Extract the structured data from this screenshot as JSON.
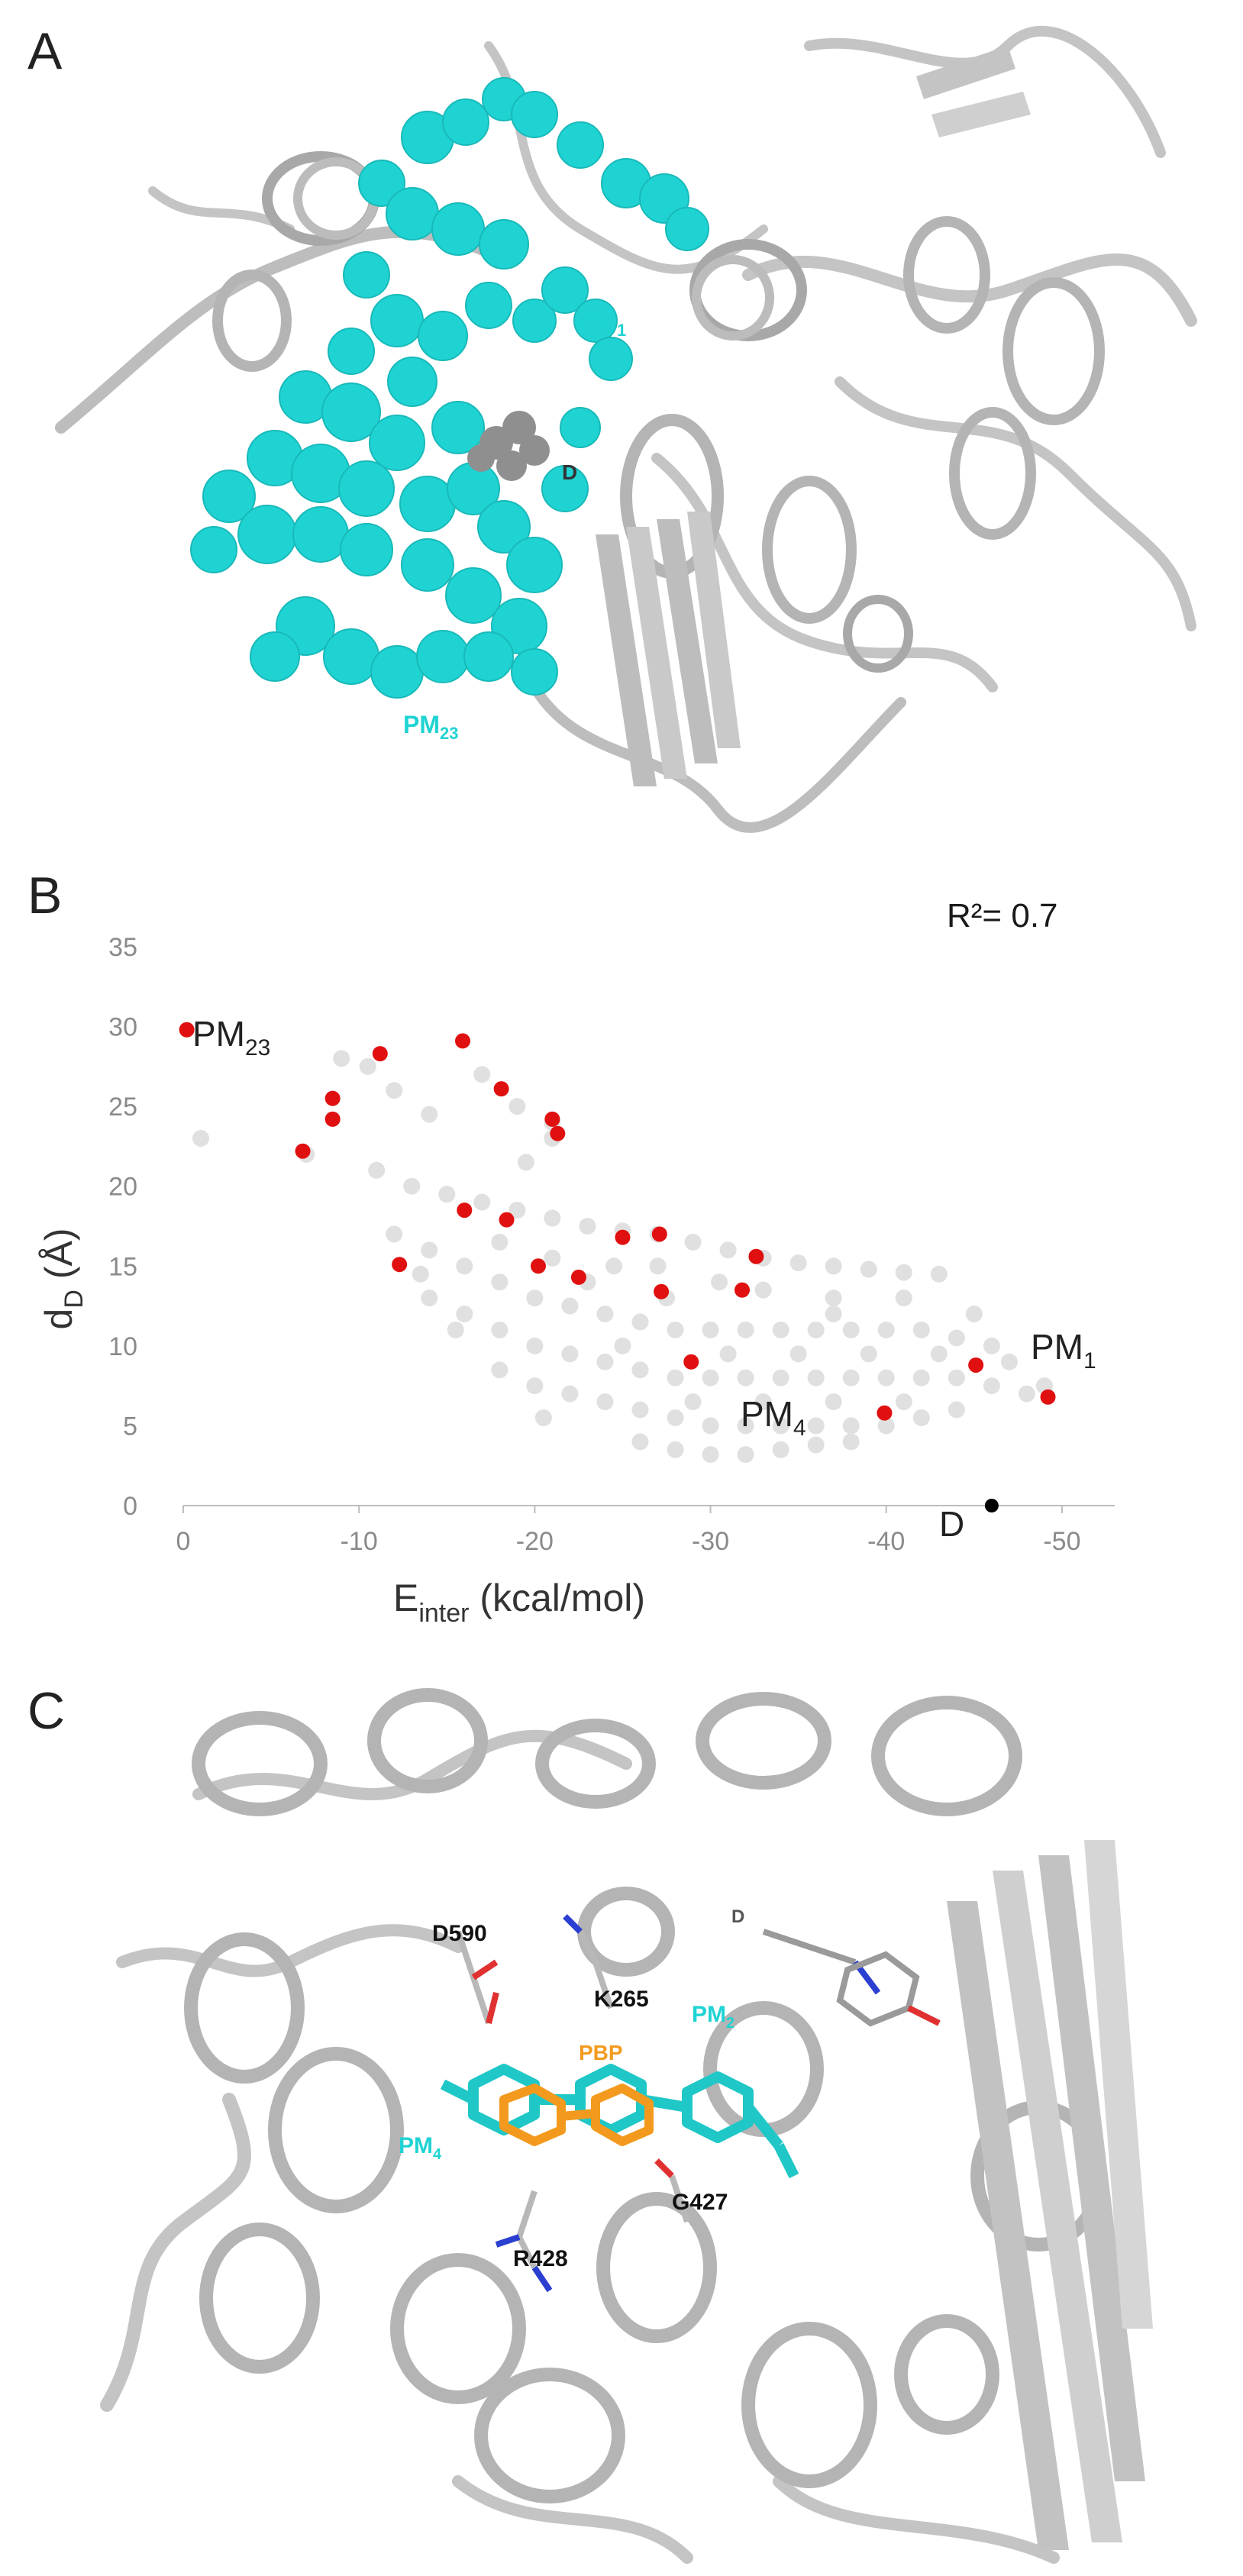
{
  "panels": {
    "a": {
      "letter": "A",
      "labels": {
        "pm1": "PM",
        "pm1_sub": "1",
        "pm23": "PM",
        "pm23_sub": "23",
        "d": "D"
      },
      "colors": {
        "pocket": "#1fd3d3",
        "protein": "#c8c8c8",
        "ligand": "#8f8f8f"
      }
    },
    "b": {
      "letter": "B",
      "r2_text": "R²= 0.7",
      "ylabel_main": "d",
      "ylabel_sub": "D",
      "ylabel_rest": " (Å)",
      "xlabel_main": "E",
      "xlabel_sub": "inter",
      "xlabel_rest": " (kcal/mol)",
      "annotations": {
        "pm23": "PM",
        "pm23_sub": "23",
        "pm4": "PM",
        "pm4_sub": "4",
        "pm1": "PM",
        "pm1_sub": "1",
        "d": "D"
      }
    },
    "c": {
      "letter": "C",
      "labels": {
        "d590": "D590",
        "k265": "K265",
        "g427": "G427",
        "r428": "R428",
        "pbp": "PBP",
        "pm2": "PM",
        "pm2_sub": "2",
        "pm4": "PM",
        "pm4_sub": "4",
        "d": "D"
      },
      "colors": {
        "cyan": "#1fd3d3",
        "orange": "#f39a1e",
        "protein": "#c8c8c8"
      }
    }
  },
  "chart_data": {
    "type": "scatter",
    "xlabel": "E_inter (kcal/mol)",
    "ylabel": "d_D (Å)",
    "xlim": [
      0,
      -53
    ],
    "ylim": [
      0,
      35
    ],
    "x_ticks": [
      0,
      -10,
      -20,
      -30,
      -40,
      -50
    ],
    "x_tick_labels": [
      "0",
      "-10",
      "-20",
      "-30",
      "-40",
      "-50"
    ],
    "y_ticks": [
      0,
      5,
      10,
      15,
      20,
      25,
      30,
      35
    ],
    "y_tick_labels": [
      "0",
      "5",
      "10",
      "15",
      "20",
      "25",
      "30",
      "35"
    ],
    "grid": false,
    "annotation": "R²= 0.7",
    "background_color": "#e0e0e0",
    "highlight_color": "#e01010",
    "reference_color": "#000000",
    "background_cloud": [
      [
        -1,
        23
      ],
      [
        -7,
        22
      ],
      [
        -9,
        28
      ],
      [
        -10.5,
        27.5
      ],
      [
        -12,
        26
      ],
      [
        -14,
        24.5
      ],
      [
        -17,
        27
      ],
      [
        -19,
        25
      ],
      [
        -21,
        24
      ],
      [
        -19.5,
        21.5
      ],
      [
        -21,
        23
      ],
      [
        -11,
        21
      ],
      [
        -13,
        20
      ],
      [
        -15,
        19.5
      ],
      [
        -17,
        19
      ],
      [
        -19,
        18.5
      ],
      [
        -21,
        18
      ],
      [
        -23,
        17.5
      ],
      [
        -25,
        17.2
      ],
      [
        -27,
        17
      ],
      [
        -29,
        16.5
      ],
      [
        -31,
        16
      ],
      [
        -33,
        15.5
      ],
      [
        -35,
        15.2
      ],
      [
        -37,
        15
      ],
      [
        -39,
        14.8
      ],
      [
        -41,
        14.6
      ],
      [
        -43,
        14.5
      ],
      [
        -12,
        17
      ],
      [
        -14,
        16
      ],
      [
        -16,
        15
      ],
      [
        -18,
        14
      ],
      [
        -20,
        13
      ],
      [
        -22,
        12.5
      ],
      [
        -24,
        12
      ],
      [
        -26,
        11.5
      ],
      [
        -28,
        11
      ],
      [
        -30,
        11
      ],
      [
        -32,
        11
      ],
      [
        -34,
        11
      ],
      [
        -36,
        11
      ],
      [
        -38,
        11
      ],
      [
        -40,
        11
      ],
      [
        -42,
        11
      ],
      [
        -44,
        10.5
      ],
      [
        -46,
        10
      ],
      [
        -14,
        13
      ],
      [
        -16,
        12
      ],
      [
        -18,
        11
      ],
      [
        -20,
        10
      ],
      [
        -22,
        9.5
      ],
      [
        -24,
        9
      ],
      [
        -26,
        8.5
      ],
      [
        -28,
        8
      ],
      [
        -30,
        8
      ],
      [
        -32,
        8
      ],
      [
        -34,
        8
      ],
      [
        -36,
        8
      ],
      [
        -38,
        8
      ],
      [
        -40,
        8
      ],
      [
        -42,
        8
      ],
      [
        -44,
        8
      ],
      [
        -46,
        7.5
      ],
      [
        -48,
        7
      ],
      [
        -18,
        8.5
      ],
      [
        -20,
        7.5
      ],
      [
        -22,
        7
      ],
      [
        -24,
        6.5
      ],
      [
        -26,
        6
      ],
      [
        -28,
        5.5
      ],
      [
        -30,
        5
      ],
      [
        -32,
        5
      ],
      [
        -34,
        5
      ],
      [
        -36,
        5
      ],
      [
        -38,
        5
      ],
      [
        -40,
        5
      ],
      [
        -42,
        5.5
      ],
      [
        -44,
        6
      ],
      [
        -26,
        4
      ],
      [
        -28,
        3.5
      ],
      [
        -30,
        3.2
      ],
      [
        -32,
        3.2
      ],
      [
        -34,
        3.5
      ],
      [
        -36,
        3.8
      ],
      [
        -38,
        4
      ],
      [
        -20.5,
        5.5
      ],
      [
        -15.5,
        11
      ],
      [
        -13.5,
        14.5
      ],
      [
        -33,
        13.5
      ],
      [
        -37,
        13
      ],
      [
        -41,
        13
      ],
      [
        -45,
        12
      ],
      [
        -47,
        9
      ],
      [
        -49,
        7.5
      ],
      [
        -30.5,
        14
      ],
      [
        -27.5,
        13
      ],
      [
        -24.5,
        15
      ],
      [
        -35,
        9.5
      ],
      [
        -39,
        9.5
      ],
      [
        -43,
        9.5
      ],
      [
        -23,
        14
      ],
      [
        -18,
        16.5
      ],
      [
        -29,
        6.5
      ],
      [
        -33,
        6.5
      ],
      [
        -37,
        6.5
      ],
      [
        -41,
        6.5
      ],
      [
        -25,
        10
      ],
      [
        -31,
        9.5
      ],
      [
        -37,
        12
      ],
      [
        -21,
        15.5
      ],
      [
        -27,
        15
      ]
    ],
    "highlighted": [
      [
        -0.2,
        29.8
      ],
      [
        -6.8,
        22.2
      ],
      [
        -8.5,
        25.5
      ],
      [
        -8.5,
        24.2
      ],
      [
        -11.2,
        28.3
      ],
      [
        -12.3,
        15.1
      ],
      [
        -15.9,
        29.1
      ],
      [
        -16.0,
        18.5
      ],
      [
        -18.1,
        26.1
      ],
      [
        -18.4,
        17.9
      ],
      [
        -20.2,
        15.0
      ],
      [
        -21.0,
        24.2
      ],
      [
        -21.3,
        23.3
      ],
      [
        -22.5,
        14.3
      ],
      [
        -25.0,
        16.8
      ],
      [
        -27.1,
        17.0
      ],
      [
        -27.2,
        13.4
      ],
      [
        -28.9,
        9.0
      ],
      [
        -31.8,
        13.5
      ],
      [
        -32.6,
        15.6
      ],
      [
        -39.9,
        5.8
      ],
      [
        -45.1,
        8.8
      ],
      [
        -49.2,
        6.8
      ]
    ],
    "reference_point": {
      "label": "D",
      "x": -46,
      "y": 0
    },
    "point_labels": [
      {
        "text": "PM23",
        "x": -0.2,
        "y": 29.8
      },
      {
        "text": "PM4",
        "x": -32,
        "y": 10
      },
      {
        "text": "PM1",
        "x": -49.2,
        "y": 6.8
      }
    ]
  }
}
